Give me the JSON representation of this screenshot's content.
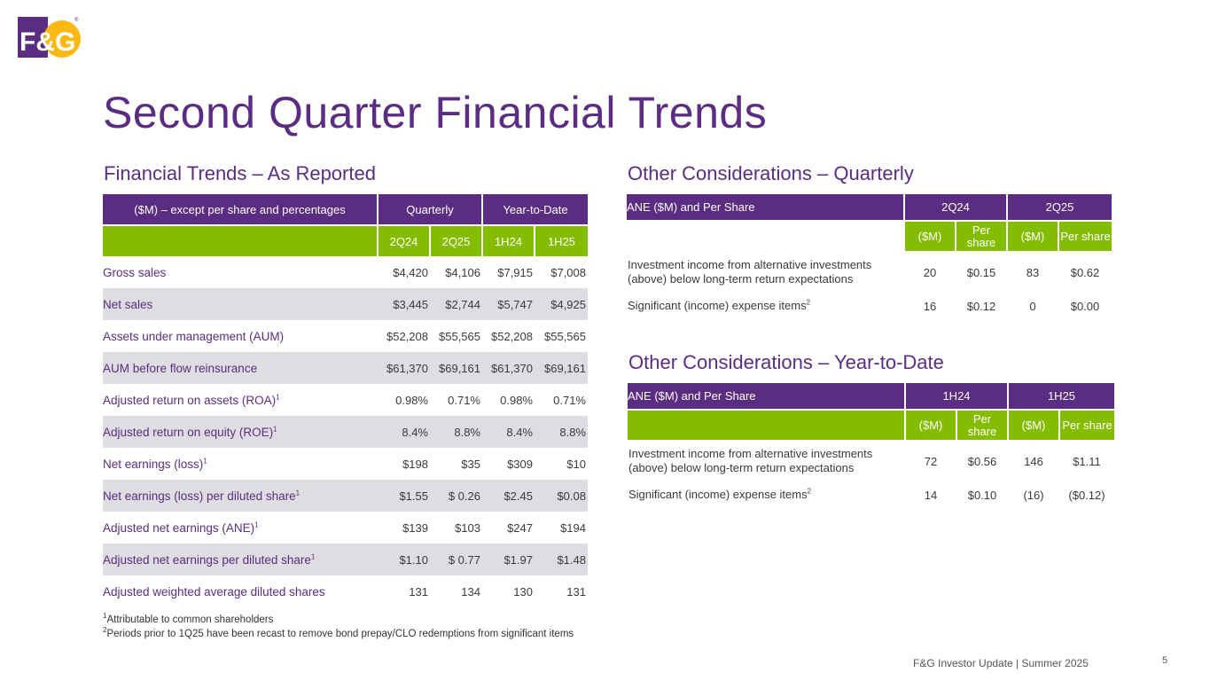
{
  "logo": {
    "text": "F&G",
    "registered": "®",
    "colors": {
      "purple": "#5b2d82",
      "yellow": "#fdb913"
    }
  },
  "title": "Second Quarter Financial Trends",
  "left": {
    "heading": "Financial Trends – As Reported",
    "header": {
      "label": "($M) – except per share and percentages",
      "quarterly": "Quarterly",
      "ytd": "Year-to-Date"
    },
    "columns": [
      "2Q24",
      "2Q25",
      "1H24",
      "1H25"
    ],
    "rows": [
      {
        "label": "Gross sales",
        "sup": "",
        "values": [
          "$4,420",
          "$4,106",
          "$7,915",
          "$7,008"
        ]
      },
      {
        "label": "Net sales",
        "sup": "",
        "values": [
          "$3,445",
          "$2,744",
          "$5,747",
          "$4,925"
        ]
      },
      {
        "label": "Assets under management (AUM)",
        "sup": "",
        "values": [
          "$52,208",
          "$55,565",
          "$52,208",
          "$55,565"
        ]
      },
      {
        "label": "AUM before flow reinsurance",
        "sup": "",
        "values": [
          "$61,370",
          "$69,161",
          "$61,370",
          "$69,161"
        ]
      },
      {
        "label": "Adjusted return on assets (ROA)",
        "sup": "1",
        "values": [
          "0.98%",
          "0.71%",
          "0.98%",
          "0.71%"
        ]
      },
      {
        "label": "Adjusted return on equity (ROE)",
        "sup": "1",
        "values": [
          "8.4%",
          "8.8%",
          "8.4%",
          "8.8%"
        ]
      },
      {
        "label": "Net earnings (loss)",
        "sup": "1",
        "values": [
          "$198",
          "$35",
          "$309",
          "$10"
        ]
      },
      {
        "label": "Net earnings (loss) per diluted share",
        "sup": "1",
        "values": [
          "$1.55",
          "$ 0.26",
          "$2.45",
          "$0.08"
        ]
      },
      {
        "label": "Adjusted net earnings (ANE)",
        "sup": "1",
        "values": [
          "$139",
          "$103",
          "$247",
          "$194"
        ]
      },
      {
        "label": "Adjusted net earnings per diluted share",
        "sup": "1",
        "values": [
          "$1.10",
          "$ 0.77",
          "$1.97",
          "$1.48"
        ]
      },
      {
        "label": "Adjusted weighted average diluted shares",
        "sup": "",
        "values": [
          "131",
          "134",
          "130",
          "131"
        ]
      }
    ]
  },
  "quarterly": {
    "heading": "Other Considerations – Quarterly",
    "header": {
      "label": "ANE ($M) and Per Share",
      "p1": "2Q24",
      "p2": "2Q25"
    },
    "sub": [
      "($M)",
      "Per share",
      "($M)",
      "Per share"
    ],
    "rows": [
      {
        "label": "Investment income from alternative investments (above) below long-term return expectations",
        "sup": "",
        "values": [
          "20",
          "$0.15",
          "83",
          "$0.62"
        ]
      },
      {
        "label": "Significant (income) expense items",
        "sup": "2",
        "values": [
          "16",
          "$0.12",
          "0",
          "$0.00"
        ]
      }
    ]
  },
  "ytd": {
    "heading": "Other Considerations – Year-to-Date",
    "header": {
      "label": "ANE ($M) and Per Share",
      "p1": "1H24",
      "p2": "1H25"
    },
    "sub": [
      "($M)",
      "Per share",
      "($M)",
      "Per share"
    ],
    "rows": [
      {
        "label": "Investment income from alternative investments (above) below long-term return expectations",
        "sup": "",
        "values": [
          "72",
          "$0.56",
          "146",
          "$1.11"
        ]
      },
      {
        "label": "Significant (income) expense items",
        "sup": "2",
        "values": [
          "14",
          "$0.10",
          "(16)",
          "($0.12)"
        ]
      }
    ]
  },
  "footnotes": [
    {
      "num": "1",
      "text": "Attributable to common shareholders"
    },
    {
      "num": "2",
      "text": "Periods prior to 1Q25 have been recast to remove bond prepay/CLO redemptions from significant items"
    }
  ],
  "footer": "F&G Investor Update |  Summer 2025",
  "page_number": "5"
}
